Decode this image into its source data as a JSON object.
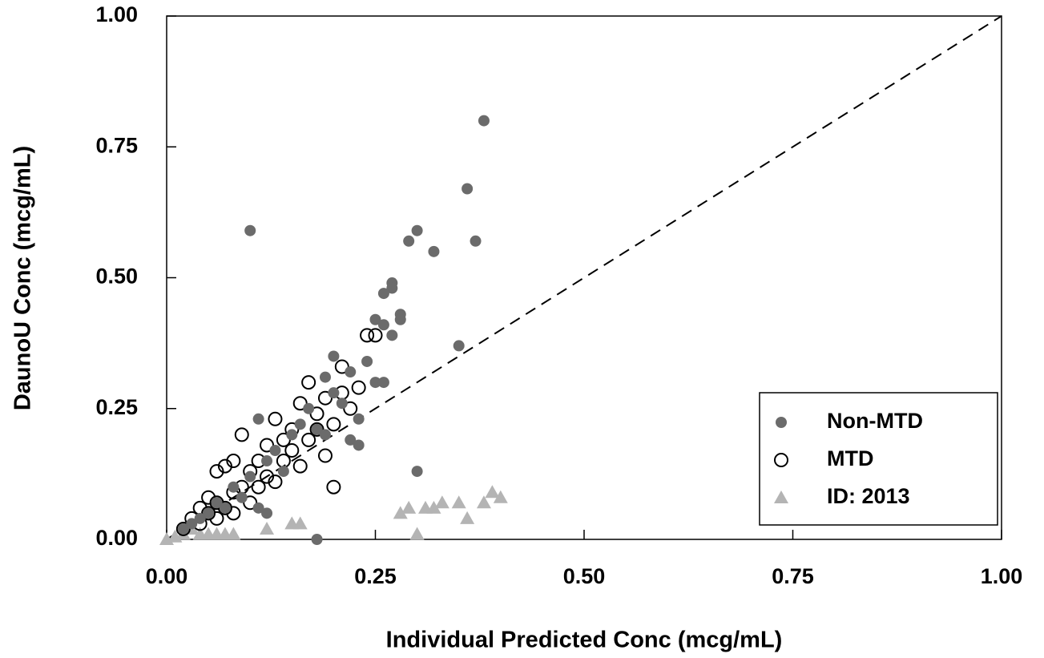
{
  "chart_data": {
    "type": "scatter",
    "xlabel": "Individual Predicted Conc (mcg/mL)",
    "ylabel": "DaunoU Conc (mcg/mL)",
    "xlim": [
      0,
      1
    ],
    "ylim": [
      0,
      1
    ],
    "xticks": [
      {
        "value": 0,
        "label": "0.00"
      },
      {
        "value": 0.25,
        "label": "0.25"
      },
      {
        "value": 0.5,
        "label": "0.50"
      },
      {
        "value": 0.75,
        "label": "0.75"
      },
      {
        "value": 1,
        "label": "1.00"
      }
    ],
    "yticks": [
      {
        "value": 0,
        "label": "0.00"
      },
      {
        "value": 0.25,
        "label": "0.25"
      },
      {
        "value": 0.5,
        "label": "0.50"
      },
      {
        "value": 0.75,
        "label": "0.75"
      },
      {
        "value": 1,
        "label": "1.00"
      }
    ],
    "identity_line": true,
    "legend": "lower right",
    "series": [
      {
        "name": "Non-MTD",
        "color": "#6b6b6b",
        "marker": "filled-circle",
        "x": [
          0.38,
          0.36,
          0.37,
          0.1,
          0.3,
          0.29,
          0.32,
          0.27,
          0.27,
          0.26,
          0.28,
          0.28,
          0.25,
          0.26,
          0.27,
          0.35,
          0.2,
          0.24,
          0.22,
          0.25,
          0.26,
          0.19,
          0.23,
          0.22,
          0.23,
          0.3,
          0.18,
          0.11,
          0.15,
          0.12,
          0.1,
          0.08,
          0.06,
          0.05,
          0.04,
          0.03,
          0.02,
          0.13,
          0.16,
          0.17,
          0.2,
          0.14,
          0.09,
          0.07,
          0.12,
          0.11,
          0.21,
          0.18,
          0.19
        ],
        "values": [
          0.8,
          0.67,
          0.57,
          0.59,
          0.59,
          0.57,
          0.55,
          0.49,
          0.48,
          0.47,
          0.43,
          0.42,
          0.42,
          0.41,
          0.39,
          0.37,
          0.35,
          0.34,
          0.32,
          0.3,
          0.3,
          0.31,
          0.23,
          0.19,
          0.18,
          0.13,
          0.0,
          0.23,
          0.2,
          0.15,
          0.12,
          0.1,
          0.07,
          0.05,
          0.04,
          0.03,
          0.02,
          0.17,
          0.22,
          0.25,
          0.28,
          0.13,
          0.08,
          0.06,
          0.05,
          0.06,
          0.26,
          0.21,
          0.2
        ]
      },
      {
        "name": "MTD",
        "color": "#000000",
        "marker": "open-circle",
        "x": [
          0.24,
          0.25,
          0.21,
          0.17,
          0.23,
          0.21,
          0.19,
          0.16,
          0.18,
          0.13,
          0.2,
          0.15,
          0.09,
          0.14,
          0.12,
          0.19,
          0.11,
          0.16,
          0.08,
          0.07,
          0.06,
          0.1,
          0.2,
          0.12,
          0.09,
          0.11,
          0.08,
          0.05,
          0.06,
          0.07,
          0.04,
          0.05,
          0.03,
          0.06,
          0.08,
          0.02,
          0.04,
          0.1,
          0.13,
          0.14,
          0.17,
          0.18,
          0.22,
          0.15
        ],
        "values": [
          0.39,
          0.39,
          0.33,
          0.3,
          0.29,
          0.28,
          0.27,
          0.26,
          0.24,
          0.23,
          0.22,
          0.21,
          0.2,
          0.19,
          0.18,
          0.16,
          0.15,
          0.14,
          0.15,
          0.14,
          0.13,
          0.13,
          0.1,
          0.12,
          0.1,
          0.1,
          0.09,
          0.08,
          0.07,
          0.06,
          0.06,
          0.05,
          0.04,
          0.04,
          0.05,
          0.02,
          0.03,
          0.07,
          0.11,
          0.15,
          0.19,
          0.21,
          0.25,
          0.17
        ]
      },
      {
        "name": "ID: 2013",
        "color": "#b4b4b4",
        "marker": "triangle",
        "x": [
          0.39,
          0.4,
          0.38,
          0.35,
          0.33,
          0.32,
          0.31,
          0.29,
          0.28,
          0.36,
          0.3,
          0.16,
          0.15,
          0.12,
          0.08,
          0.06,
          0.04,
          0.02,
          0.01,
          0.0,
          0.03,
          0.05,
          0.07
        ],
        "values": [
          0.09,
          0.08,
          0.07,
          0.07,
          0.07,
          0.06,
          0.06,
          0.06,
          0.05,
          0.04,
          0.01,
          0.03,
          0.03,
          0.02,
          0.01,
          0.01,
          0.01,
          0.01,
          0.005,
          0.0,
          0.02,
          0.01,
          0.01
        ]
      }
    ]
  }
}
